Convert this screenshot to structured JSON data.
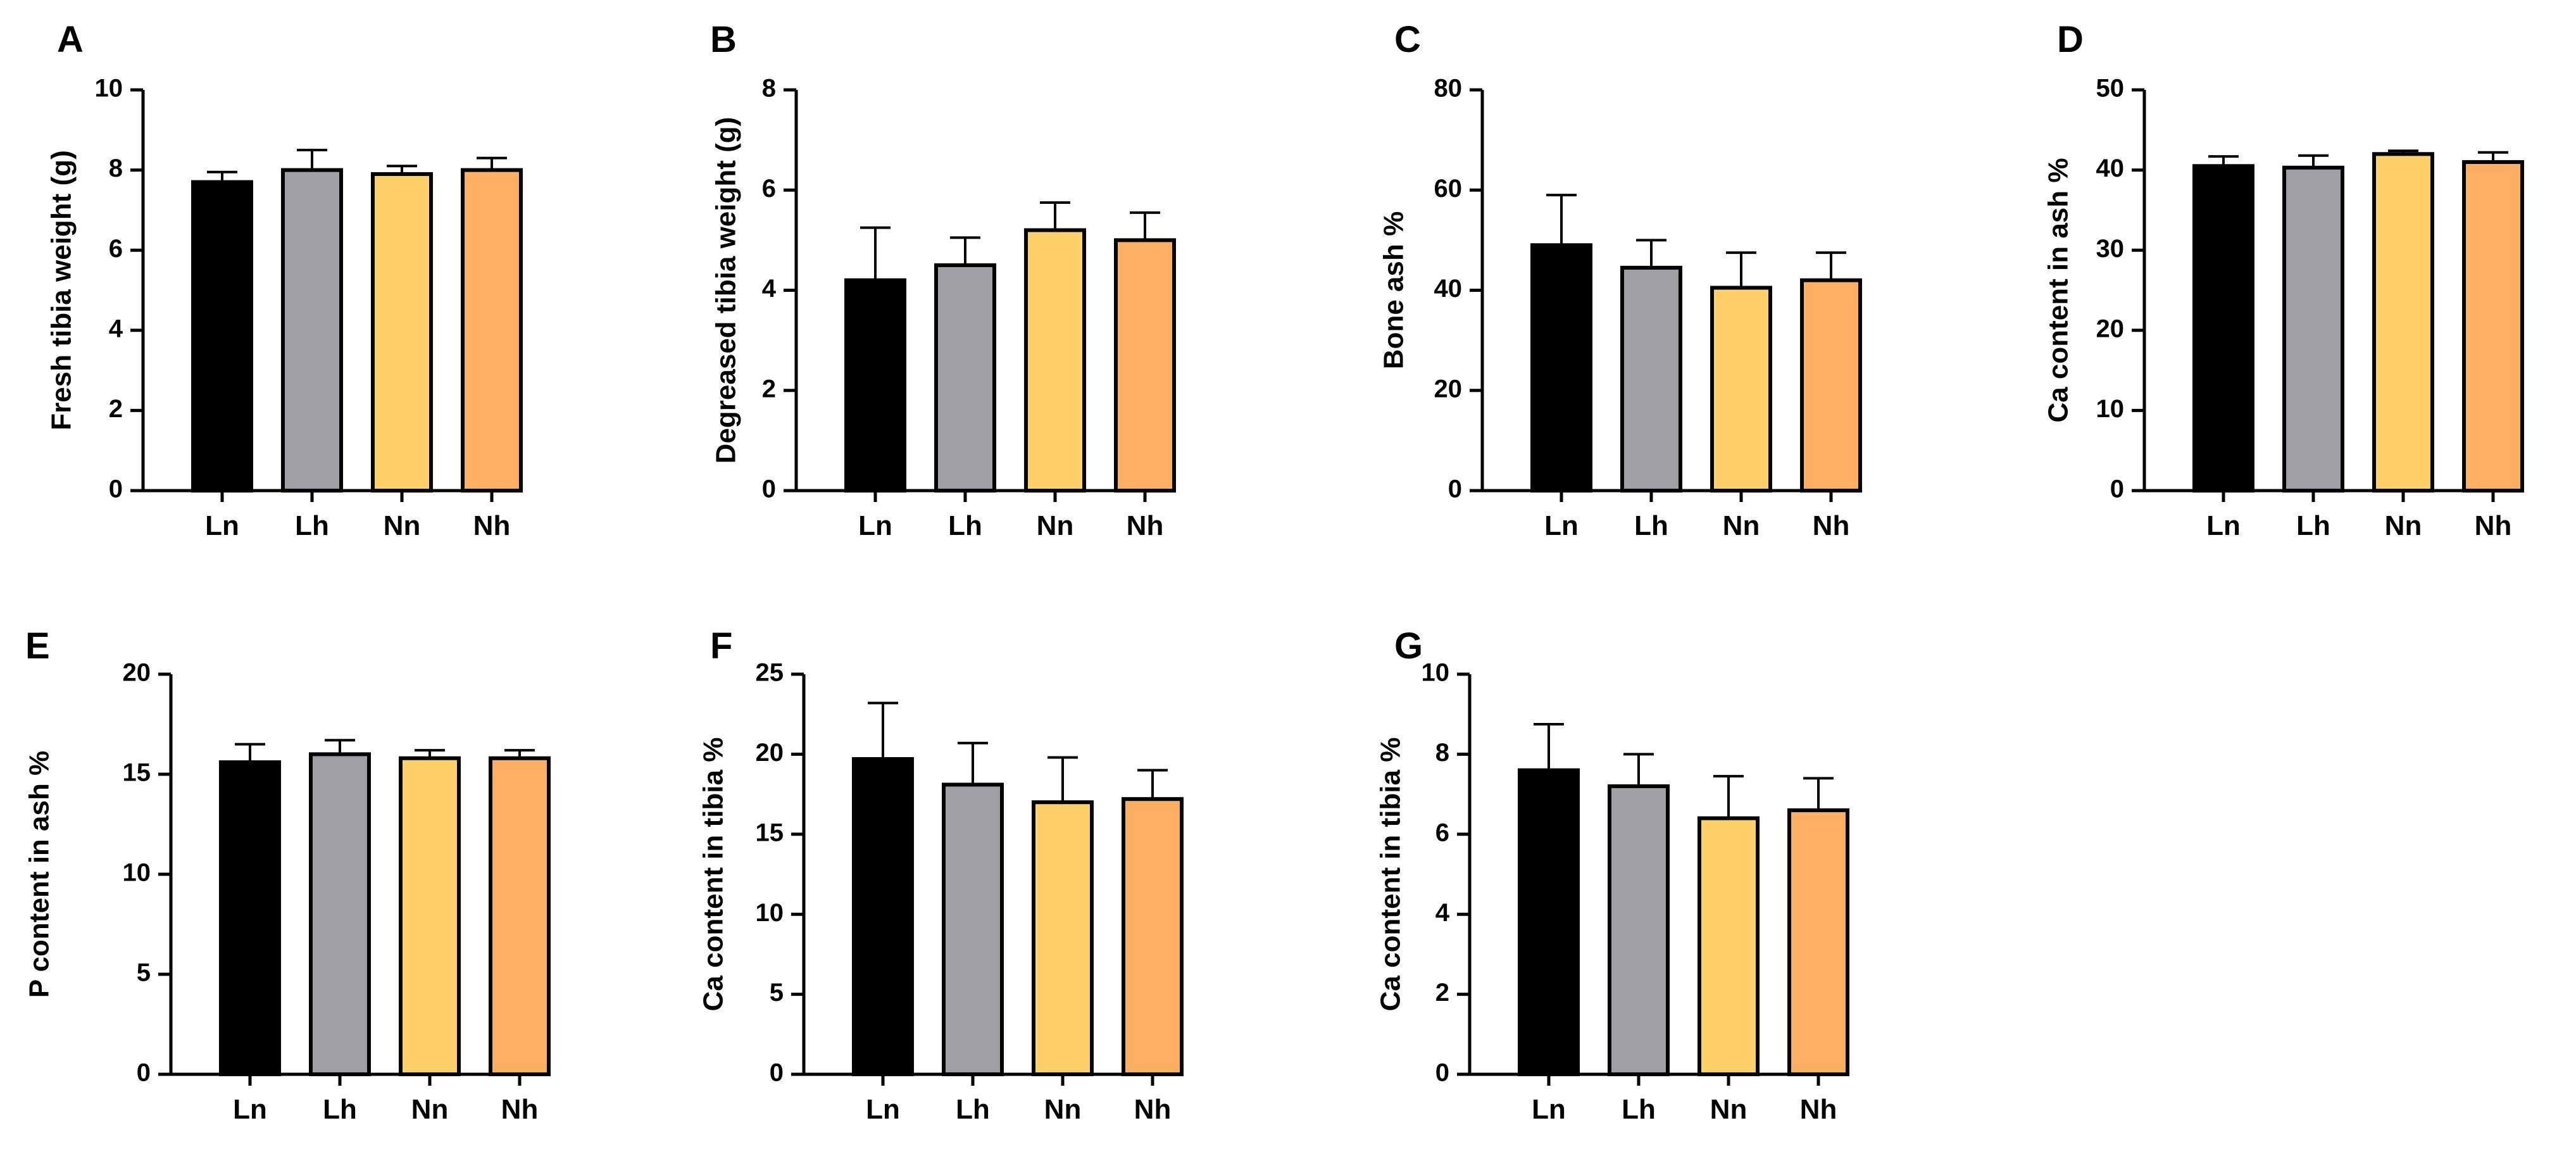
{
  "chart_data": [
    {
      "panel": "A",
      "type": "bar",
      "categories": [
        "Ln",
        "Lh",
        "Nn",
        "Nh"
      ],
      "colors": [
        "#000000",
        "#a0a0a4",
        "#fdd06a",
        "#fcae63"
      ],
      "ylabel": "Fresh tibia weight (g)",
      "ylim": [
        0,
        10
      ],
      "yticks": [
        0,
        2,
        4,
        6,
        8,
        10
      ],
      "values": [
        7.7,
        8.0,
        7.9,
        8.0
      ],
      "errors": [
        0.25,
        0.5,
        0.2,
        0.3
      ]
    },
    {
      "panel": "B",
      "type": "bar",
      "categories": [
        "Ln",
        "Lh",
        "Nn",
        "Nh"
      ],
      "colors": [
        "#000000",
        "#a0a0a4",
        "#fdd06a",
        "#fcae63"
      ],
      "ylabel": "Degreased tibia weight (g)",
      "ylim": [
        0,
        8
      ],
      "yticks": [
        0,
        2,
        4,
        6,
        8
      ],
      "values": [
        4.2,
        4.5,
        5.2,
        5.0
      ],
      "errors": [
        1.05,
        0.55,
        0.55,
        0.55
      ]
    },
    {
      "panel": "C",
      "type": "bar",
      "categories": [
        "Ln",
        "Lh",
        "Nn",
        "Nh"
      ],
      "colors": [
        "#000000",
        "#a0a0a4",
        "#fdd06a",
        "#fcae63"
      ],
      "ylabel": "Bone ash %",
      "ylim": [
        0,
        80
      ],
      "yticks": [
        0,
        20,
        40,
        60,
        80
      ],
      "values": [
        49,
        44.5,
        40.5,
        42
      ],
      "errors": [
        10,
        5.5,
        7,
        5.5
      ]
    },
    {
      "panel": "D",
      "type": "bar",
      "categories": [
        "Ln",
        "Lh",
        "Nn",
        "Nh"
      ],
      "colors": [
        "#000000",
        "#a0a0a4",
        "#fdd06a",
        "#fcae63"
      ],
      "ylabel": "Ca content in ash %",
      "ylim": [
        0,
        50
      ],
      "yticks": [
        0,
        10,
        20,
        30,
        40,
        50
      ],
      "values": [
        40.5,
        40.3,
        42,
        41
      ],
      "errors": [
        1.2,
        1.5,
        0.4,
        1.2
      ]
    },
    {
      "panel": "E",
      "type": "bar",
      "categories": [
        "Ln",
        "Lh",
        "Nn",
        "Nh"
      ],
      "colors": [
        "#000000",
        "#a0a0a4",
        "#fdd06a",
        "#fcae63"
      ],
      "ylabel": "P content in ash %",
      "ylim": [
        0,
        20
      ],
      "yticks": [
        0,
        5,
        10,
        15,
        20
      ],
      "values": [
        15.6,
        16.0,
        15.8,
        15.8
      ],
      "errors": [
        0.9,
        0.7,
        0.4,
        0.4
      ]
    },
    {
      "panel": "F",
      "type": "bar",
      "categories": [
        "Ln",
        "Lh",
        "Nn",
        "Nh"
      ],
      "colors": [
        "#000000",
        "#a0a0a4",
        "#fdd06a",
        "#fcae63"
      ],
      "ylabel": "Ca content in tibia %",
      "ylim": [
        0,
        25
      ],
      "yticks": [
        0,
        5,
        10,
        15,
        20,
        25
      ],
      "values": [
        19.7,
        18.1,
        17.0,
        17.2
      ],
      "errors": [
        3.5,
        2.6,
        2.8,
        1.8
      ]
    },
    {
      "panel": "G",
      "type": "bar",
      "categories": [
        "Ln",
        "Lh",
        "Nn",
        "Nh"
      ],
      "colors": [
        "#000000",
        "#a0a0a4",
        "#fdd06a",
        "#fcae63"
      ],
      "ylabel": "Ca content in tibia %",
      "ylim": [
        0,
        10
      ],
      "yticks": [
        0,
        2,
        4,
        6,
        8,
        10
      ],
      "values": [
        7.6,
        7.2,
        6.4,
        6.6
      ],
      "errors": [
        1.15,
        0.8,
        1.05,
        0.8
      ]
    }
  ]
}
